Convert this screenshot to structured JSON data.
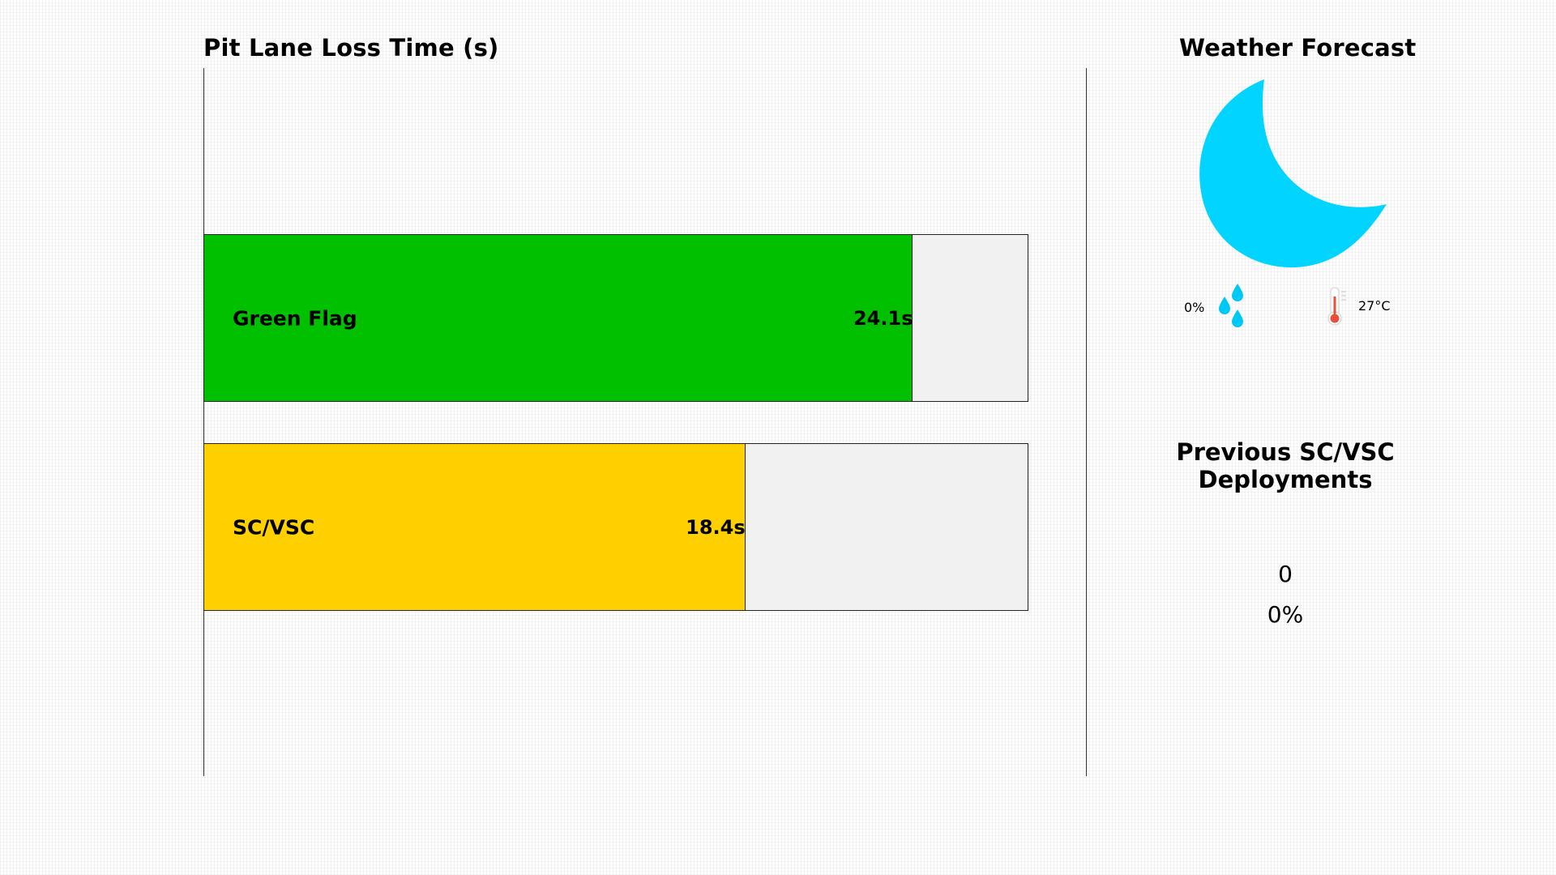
{
  "pit_lane": {
    "title": "Pit Lane Loss Time (s)",
    "max_value": 28.0,
    "bars": [
      {
        "label": "Green Flag",
        "value": 24.1,
        "value_text": "24.1s",
        "color": "#00c000"
      },
      {
        "label": "SC/VSC",
        "value": 18.4,
        "value_text": "18.4s",
        "color": "#ffd000"
      }
    ]
  },
  "weather": {
    "title": "Weather Forecast",
    "condition_icon": "moon-icon",
    "icon_color": "#00d4ff",
    "rain_chance": "0%",
    "rain_icon": "raindrop-icon",
    "temperature": "27°C",
    "temperature_icon": "thermometer-icon"
  },
  "sc_vsc": {
    "title_line1": "Previous SC/VSC",
    "title_line2": "Deployments",
    "count": "0",
    "percentage": "0%"
  }
}
